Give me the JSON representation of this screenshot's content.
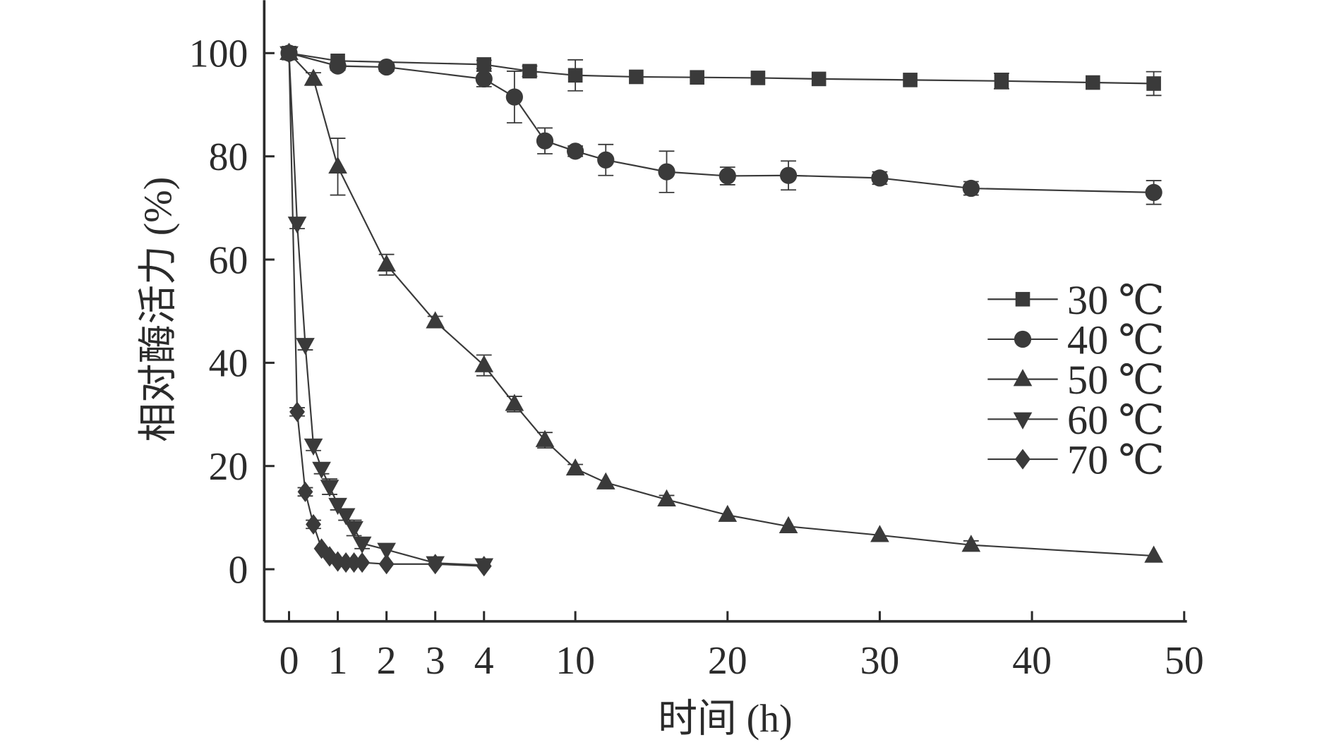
{
  "chart_data": {
    "type": "line",
    "title": "",
    "xlabel": "时间 (h)",
    "ylabel": "相对酶活力 (%)",
    "ylim": [
      -10,
      110
    ],
    "xlim": [
      -0.5,
      50
    ],
    "x_axis_note": "broken scale: 0-4 h expanded, 4-50 h compressed",
    "xticks": [
      0,
      1,
      2,
      3,
      4,
      10,
      20,
      30,
      40,
      50
    ],
    "xtick_labels": [
      "0",
      "1",
      "2",
      "3",
      "4",
      "10",
      "20",
      "30",
      "40",
      "50"
    ],
    "yticks": [
      0,
      20,
      40,
      60,
      80,
      100
    ],
    "ytick_labels": [
      "0",
      "20",
      "40",
      "60",
      "80",
      "100"
    ],
    "grid": false,
    "legend_position": "right",
    "color": "#3a3a3a",
    "series": [
      {
        "name": "30 ℃",
        "marker": "square",
        "x": [
          0,
          1,
          4,
          7,
          10,
          14,
          18,
          22,
          26,
          32,
          38,
          44,
          48
        ],
        "y": [
          100,
          98.5,
          97.8,
          96.5,
          95.7,
          95.4,
          95.3,
          95.2,
          95.0,
          94.8,
          94.6,
          94.3,
          94.1
        ],
        "err": [
          0.5,
          0.6,
          0.8,
          1.0,
          3.0,
          0.6,
          0.6,
          0.5,
          0.6,
          0.6,
          1.5,
          0.6,
          2.3
        ]
      },
      {
        "name": "40 ℃",
        "marker": "circle",
        "x": [
          0,
          1,
          2,
          4,
          6,
          8,
          10,
          12,
          16,
          20,
          24,
          30,
          36,
          48
        ],
        "y": [
          100,
          97.5,
          97.3,
          95.0,
          91.5,
          83.0,
          81.0,
          79.3,
          77.0,
          76.2,
          76.3,
          75.8,
          73.8,
          73.0
        ],
        "err": [
          0.5,
          0.8,
          0.8,
          1.5,
          5.0,
          2.5,
          1.0,
          3.0,
          4.0,
          1.7,
          2.8,
          1.2,
          1.3,
          2.3
        ]
      },
      {
        "name": "50 ℃",
        "marker": "triangle-up",
        "x": [
          0,
          0.5,
          1,
          2,
          3,
          4,
          6,
          8,
          10,
          12,
          16,
          20,
          24,
          30,
          36,
          48
        ],
        "y": [
          100,
          95.0,
          78.0,
          59.0,
          48.0,
          39.5,
          32.0,
          25.0,
          19.5,
          16.8,
          13.5,
          10.5,
          8.3,
          6.6,
          4.7,
          2.6
        ],
        "err": [
          0.5,
          1.2,
          5.5,
          2.0,
          1.0,
          2.0,
          1.5,
          1.5,
          0.8,
          0.6,
          0.8,
          0.6,
          0.6,
          0.5,
          0.8,
          0.4
        ]
      },
      {
        "name": "60 ℃",
        "marker": "triangle-down",
        "x": [
          0,
          0.167,
          0.333,
          0.5,
          0.667,
          0.833,
          1,
          1.167,
          1.333,
          1.5,
          2,
          3,
          4
        ],
        "y": [
          100,
          67.0,
          43.5,
          24.0,
          19.5,
          16.0,
          12.5,
          10.5,
          8.0,
          5.0,
          3.8,
          1.2,
          0.8
        ],
        "err": [
          0.5,
          1.0,
          1.0,
          1.0,
          1.0,
          1.5,
          1.0,
          1.0,
          1.5,
          1.0,
          0.5,
          0.5,
          0.5
        ]
      },
      {
        "name": "70 ℃",
        "marker": "diamond",
        "x": [
          0,
          0.167,
          0.333,
          0.5,
          0.667,
          0.833,
          1,
          1.167,
          1.333,
          1.5,
          2,
          3,
          4
        ],
        "y": [
          100,
          30.5,
          15.0,
          8.7,
          4.0,
          2.5,
          1.5,
          1.3,
          1.3,
          1.3,
          1.0,
          1.0,
          0.6
        ],
        "err": [
          0.5,
          0.8,
          0.8,
          0.8,
          0.5,
          0.5,
          0.5,
          0.5,
          0.5,
          0.5,
          0.5,
          0.5,
          0.5
        ]
      }
    ]
  }
}
